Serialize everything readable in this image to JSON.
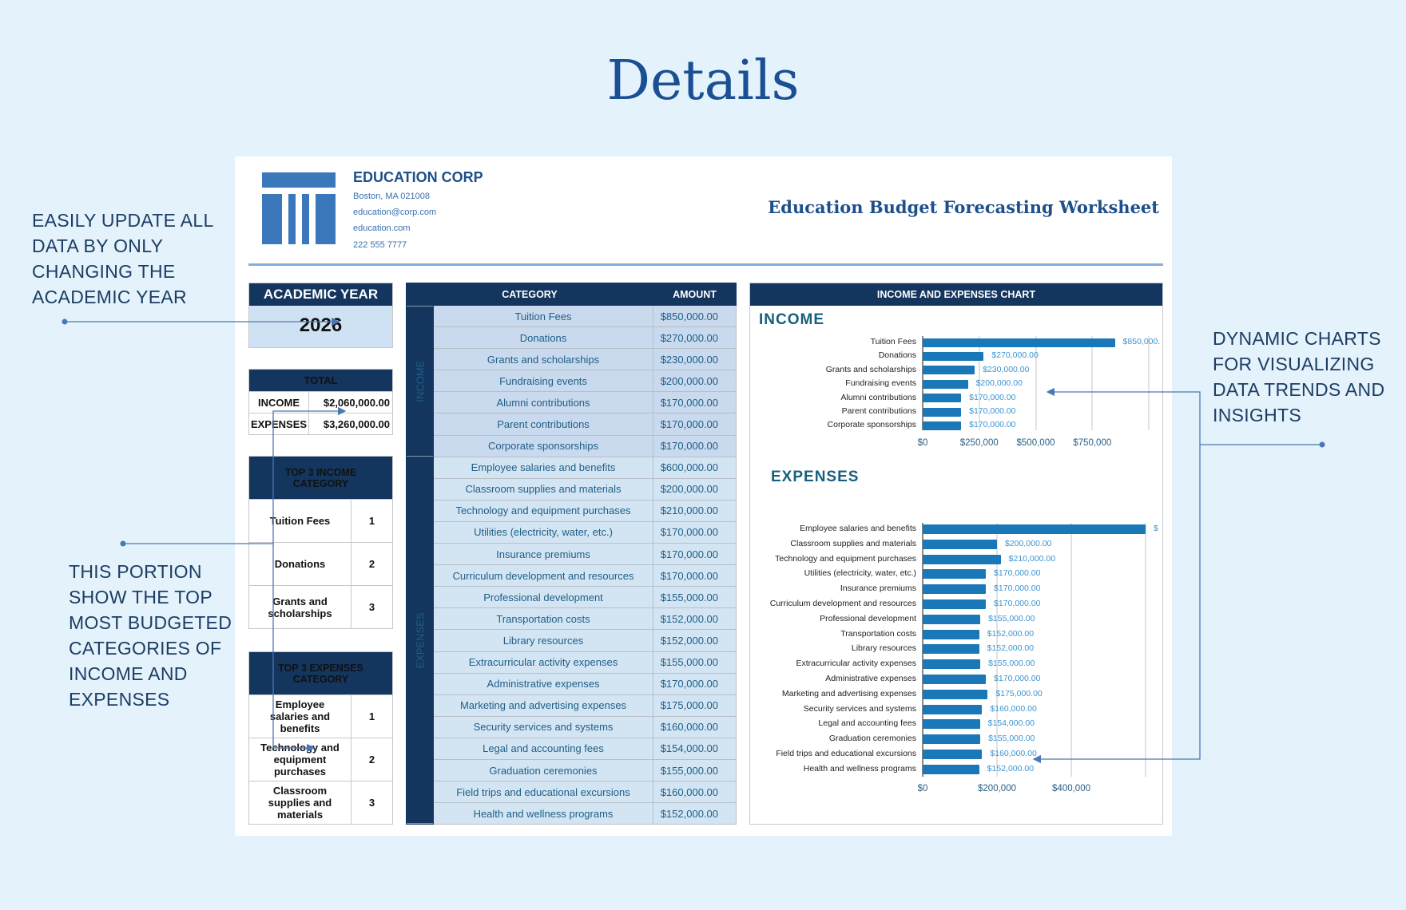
{
  "page_title": "Details",
  "annotations": {
    "left_top": [
      "EASILY UPDATE ALL",
      "DATA BY ONLY",
      "CHANGING THE",
      "ACADEMIC YEAR"
    ],
    "left_bottom": [
      "THIS PORTION",
      "SHOW THE TOP",
      "MOST BUDGETED",
      "CATEGORIES OF",
      "INCOME AND",
      "EXPENSES"
    ],
    "right": [
      "DYNAMIC CHARTS",
      "FOR VISUALIZING",
      "DATA TRENDS AND",
      "INSIGHTS"
    ]
  },
  "company": {
    "name": "EDUCATION CORP",
    "address": "Boston, MA 021008",
    "email": "education@corp.com",
    "website": "education.com",
    "phone": "222 555 7777"
  },
  "worksheet_title": "Education Budget Forecasting Worksheet",
  "academic_year": {
    "label": "ACADEMIC YEAR",
    "value": "2026"
  },
  "total": {
    "label": "TOTAL",
    "income_label": "INCOME",
    "income": "$2,060,000.00",
    "expenses_label": "EXPENSES",
    "expenses": "$3,260,000.00"
  },
  "top_income": {
    "label": "TOP 3 INCOME CATEGORY",
    "items": [
      {
        "name": "Tuition Fees",
        "rank": "1"
      },
      {
        "name": "Donations",
        "rank": "2"
      },
      {
        "name": "Grants and scholarships",
        "rank": "3"
      }
    ]
  },
  "top_expenses": {
    "label": "TOP 3 EXPENSES CATEGORY",
    "items": [
      {
        "name": "Employee salaries and benefits",
        "rank": "1"
      },
      {
        "name": "Technology and equipment purchases",
        "rank": "2"
      },
      {
        "name": "Classroom supplies and materials",
        "rank": "3"
      }
    ]
  },
  "table": {
    "col_category": "CATEGORY",
    "col_amount": "AMOUNT",
    "income_label": "INCOME",
    "expenses_label": "EXPENSES",
    "income": [
      [
        "Tuition Fees",
        "$850,000.00"
      ],
      [
        "Donations",
        "$270,000.00"
      ],
      [
        "Grants and scholarships",
        "$230,000.00"
      ],
      [
        "Fundraising events",
        "$200,000.00"
      ],
      [
        "Alumni contributions",
        "$170,000.00"
      ],
      [
        "Parent contributions",
        "$170,000.00"
      ],
      [
        "Corporate sponsorships",
        "$170,000.00"
      ]
    ],
    "expenses": [
      [
        "Employee salaries and benefits",
        "$600,000.00"
      ],
      [
        "Classroom supplies and materials",
        "$200,000.00"
      ],
      [
        "Technology and equipment purchases",
        "$210,000.00"
      ],
      [
        "Utilities (electricity, water, etc.)",
        "$170,000.00"
      ],
      [
        "Insurance premiums",
        "$170,000.00"
      ],
      [
        "Curriculum development and resources",
        "$170,000.00"
      ],
      [
        "Professional development",
        "$155,000.00"
      ],
      [
        "Transportation costs",
        "$152,000.00"
      ],
      [
        "Library resources",
        "$152,000.00"
      ],
      [
        "Extracurricular activity expenses",
        "$155,000.00"
      ],
      [
        "Administrative expenses",
        "$170,000.00"
      ],
      [
        "Marketing and advertising expenses",
        "$175,000.00"
      ],
      [
        "Security services and systems",
        "$160,000.00"
      ],
      [
        "Legal and accounting fees",
        "$154,000.00"
      ],
      [
        "Graduation ceremonies",
        "$155,000.00"
      ],
      [
        "Field trips and educational excursions",
        "$160,000.00"
      ],
      [
        "Health and wellness programs",
        "$152,000.00"
      ]
    ]
  },
  "chart_panel_title": "INCOME AND EXPENSES CHART",
  "colors": {
    "navy": "#13355e",
    "bar": "#1a78b8",
    "value_label": "#3b95d1",
    "background": "#e3f2fb"
  },
  "chart_data": [
    {
      "type": "bar",
      "orientation": "horizontal",
      "title": "INCOME",
      "xlim": [
        0,
        1000000
      ],
      "ticks": [
        "$0",
        "$250,000",
        "$500,000",
        "$750,000"
      ],
      "grid": true,
      "categories": [
        "Tuition Fees",
        "Donations",
        "Grants and scholarships",
        "Fundraising events",
        "Alumni contributions",
        "Parent contributions",
        "Corporate sponsorships"
      ],
      "values": [
        850000,
        270000,
        230000,
        200000,
        170000,
        170000,
        170000
      ],
      "labels": [
        "$850,000.",
        "$270,000.00",
        "$230,000.00",
        "$200,000.00",
        "$170,000.00",
        "$170,000.00",
        "$170,000.00"
      ]
    },
    {
      "type": "bar",
      "orientation": "horizontal",
      "title": "EXPENSES",
      "xlim": [
        0,
        600000
      ],
      "ticks": [
        "$0",
        "$200,000",
        "$400,000"
      ],
      "grid": true,
      "categories": [
        "Employee salaries and benefits",
        "Classroom supplies and materials",
        "Technology and equipment purchases",
        "Utilities (electricity, water, etc.)",
        "Insurance premiums",
        "Curriculum development and resources",
        "Professional development",
        "Transportation costs",
        "Library resources",
        "Extracurricular activity expenses",
        "Administrative expenses",
        "Marketing and advertising expenses",
        "Security services and systems",
        "Legal and accounting fees",
        "Graduation ceremonies",
        "Field trips and educational excursions",
        "Health and wellness programs"
      ],
      "values": [
        600000,
        200000,
        210000,
        170000,
        170000,
        170000,
        155000,
        152000,
        152000,
        155000,
        170000,
        175000,
        160000,
        154000,
        155000,
        160000,
        152000
      ],
      "labels": [
        "$",
        "$200,000.00",
        "$210,000.00",
        "$170,000.00",
        "$170,000.00",
        "$170,000.00",
        "$155,000.00",
        "$152,000.00",
        "$152,000.00",
        "$155,000.00",
        "$170,000.00",
        "$175,000.00",
        "$160,000.00",
        "$154,000.00",
        "$155,000.00",
        "$160,000.00",
        "$152,000.00"
      ]
    }
  ]
}
